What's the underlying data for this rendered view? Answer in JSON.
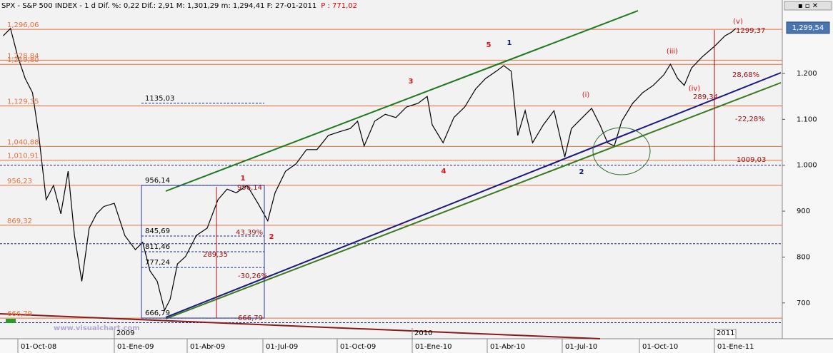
{
  "chart_data": {
    "type": "line",
    "title": "SPX - S&P 500 INDEX -   1 d Dif. %: 0,22 Dif.: 2,91 M: 1,301,29 m: 1,294,41 F: 27-01-2011",
    "title_extra": "P : 771,02",
    "watermark": "www.visualchart.com",
    "color": "#000000",
    "x": [
      "2008-09-17",
      "2008-09-24",
      "2008-10-01",
      "2008-10-08",
      "2008-10-15",
      "2008-10-21",
      "2008-10-28",
      "2008-11-04",
      "2008-11-11",
      "2008-11-18",
      "2008-11-24",
      "2008-12-01",
      "2008-12-08",
      "2008-12-15",
      "2008-12-22",
      "2009-01-01",
      "2009-01-14",
      "2009-01-27",
      "2009-02-05",
      "2009-02-14",
      "2009-02-23",
      "2009-03-04",
      "2009-03-11",
      "2009-03-20",
      "2009-03-30",
      "2009-04-12",
      "2009-04-25",
      "2009-05-08",
      "2009-05-19",
      "2009-05-30",
      "2009-06-12",
      "2009-06-25",
      "2009-07-07",
      "2009-07-16",
      "2009-07-29",
      "2009-08-11",
      "2009-08-24",
      "2009-09-06",
      "2009-09-20",
      "2009-10-04",
      "2009-10-17",
      "2009-10-26",
      "2009-11-03",
      "2009-11-16",
      "2009-11-29",
      "2009-12-12",
      "2009-12-25",
      "2010-01-08",
      "2010-01-19",
      "2010-01-25",
      "2010-02-07",
      "2010-02-20",
      "2010-03-05",
      "2010-03-18",
      "2010-03-30",
      "2010-04-12",
      "2010-04-21",
      "2010-04-30",
      "2010-05-08",
      "2010-05-17",
      "2010-05-26",
      "2010-06-08",
      "2010-06-21",
      "2010-07-04",
      "2010-07-12",
      "2010-07-25",
      "2010-08-05",
      "2010-08-15",
      "2010-08-24",
      "2010-09-01",
      "2010-09-10",
      "2010-09-23",
      "2010-10-05",
      "2010-10-18",
      "2010-10-31",
      "2010-11-08",
      "2010-11-17",
      "2010-11-25",
      "2010-12-04",
      "2010-12-17",
      "2011-01-01",
      "2011-01-14",
      "2011-01-22",
      "2011-01-27"
    ],
    "values": [
      1282,
      1298,
      1236,
      1189,
      1158,
      1065,
      925,
      956,
      894,
      987,
      847,
      747,
      863,
      894,
      910,
      917,
      847,
      816,
      832,
      770,
      747,
      684,
      708,
      785,
      801,
      847,
      863,
      925,
      948,
      940,
      956,
      917,
      879,
      940,
      987,
      1003,
      1034,
      1034,
      1065,
      1073,
      1080,
      1096,
      1042,
      1096,
      1111,
      1104,
      1127,
      1135,
      1150,
      1088,
      1049,
      1104,
      1127,
      1166,
      1189,
      1205,
      1217,
      1205,
      1065,
      1119,
      1049,
      1088,
      1119,
      1018,
      1080,
      1104,
      1124,
      1088,
      1049,
      1042,
      1096,
      1135,
      1158,
      1174,
      1197,
      1220,
      1189,
      1174,
      1212,
      1236,
      1259,
      1282,
      1290,
      1298
    ],
    "ylim": [
      622,
      1360
    ],
    "yticks": [
      700,
      800,
      900,
      {
        "value": 1000,
        "label": "1.000"
      },
      {
        "value": 1100,
        "label": "1.100"
      },
      {
        "value": 1200,
        "label": "1.200"
      }
    ],
    "xticks": [
      {
        "value": "2008-10-01",
        "label": "01-Oct-08"
      },
      {
        "value": "2009-01-01",
        "label": "01-Ene-09"
      },
      {
        "value": "2009-04-01",
        "label": "01-Abr-09"
      },
      {
        "value": "2009-07-01",
        "label": "01-Jul-09"
      },
      {
        "value": "2009-10-01",
        "label": "01-Oct-09"
      },
      {
        "value": "2010-01-01",
        "label": "01-Ene-10"
      },
      {
        "value": "2010-04-01",
        "label": "01-Abr-10"
      },
      {
        "value": "2010-07-01",
        "label": "01-Jul-10"
      },
      {
        "value": "2010-10-01",
        "label": "01-Oct-10"
      },
      {
        "value": "2011-01-01",
        "label": "01-Ene-11"
      }
    ],
    "year_labels": [
      {
        "value": "2009-01-01",
        "label": "2009"
      },
      {
        "value": "2010-01-01",
        "label": "2010"
      },
      {
        "value": "2011-01-01",
        "label": "2011"
      }
    ],
    "level_color": "#e8703c",
    "levels": [
      {
        "value": 1296.06,
        "label": "1,296,06"
      },
      {
        "value": 1228.84,
        "label": "1,228,84"
      },
      {
        "value": 1219.8,
        "label": "1,219,80"
      },
      {
        "value": 1129.35,
        "label": "1,129,35"
      },
      {
        "value": 1040.88,
        "label": "1,040,88"
      },
      {
        "value": 1010.91,
        "label": "1,010,91"
      },
      {
        "value": 956.23,
        "label": "956,23"
      },
      {
        "value": 869.32,
        "label": "869,32"
      },
      {
        "value": 666.79,
        "label": "666,79"
      }
    ],
    "dashed_color": "#1a2a8c",
    "dashed_levels": [
      {
        "value": 1135.03,
        "label": "1135,03"
      },
      {
        "value": 956.14,
        "label": "956,14"
      },
      {
        "value": 845.69,
        "label": "845,69"
      },
      {
        "value": 811.46,
        "label": "811,46"
      },
      {
        "value": 777.24,
        "label": "777,24"
      },
      {
        "value": 666.79,
        "label": "666,79"
      },
      1000,
      829,
      657
    ],
    "last_price": {
      "value": 1299.54,
      "label": "1,299,54"
    },
    "annotations": [
      "1",
      "2",
      "3",
      "4",
      "5",
      "1",
      "2",
      "(i)",
      "(iii)",
      "(iv)",
      "(v)",
      "43,39%",
      "-30,26%",
      "289,35",
      "956,14",
      "666,79",
      "28,68%",
      "-22,28%",
      "289,34",
      "1009,03",
      "1299,37"
    ]
  }
}
